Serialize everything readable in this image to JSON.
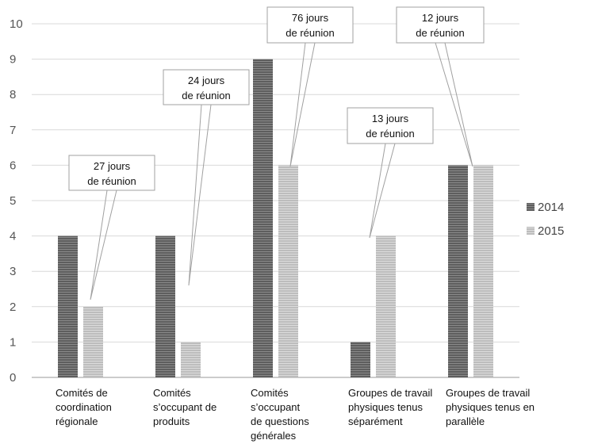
{
  "chart_data": {
    "type": "bar",
    "title": "",
    "xlabel": "",
    "ylabel": "",
    "ylim": [
      0,
      10
    ],
    "yticks": [
      0,
      1,
      2,
      3,
      4,
      5,
      6,
      7,
      8,
      9,
      10
    ],
    "grid": true,
    "legend_position": "right",
    "categories": [
      [
        "Comités de",
        "coordination",
        "régionale"
      ],
      [
        "Comités",
        "s’occupant de",
        "produits"
      ],
      [
        "Comités",
        "s’occupant",
        "de questions",
        "générales"
      ],
      [
        "Groupes de travail",
        "physiques tenus",
        "séparément"
      ],
      [
        "Groupes de travail",
        "physiques tenus en",
        "parallèle"
      ]
    ],
    "series": [
      {
        "name": "2014",
        "color": "#6f6f6f",
        "values": [
          4,
          4,
          9,
          1,
          6
        ]
      },
      {
        "name": "2015",
        "color": "#c8c8c8",
        "values": [
          2,
          1,
          6,
          4,
          6
        ]
      }
    ],
    "annotations": [
      {
        "category_index": 0,
        "lines": [
          "27 jours",
          "de réunion"
        ]
      },
      {
        "category_index": 1,
        "lines": [
          "24 jours",
          "de réunion"
        ]
      },
      {
        "category_index": 2,
        "lines": [
          "76 jours",
          "de réunion"
        ]
      },
      {
        "category_index": 3,
        "lines": [
          "13 jours",
          "de réunion"
        ]
      },
      {
        "category_index": 4,
        "lines": [
          "12 jours",
          "de réunion"
        ]
      }
    ]
  }
}
